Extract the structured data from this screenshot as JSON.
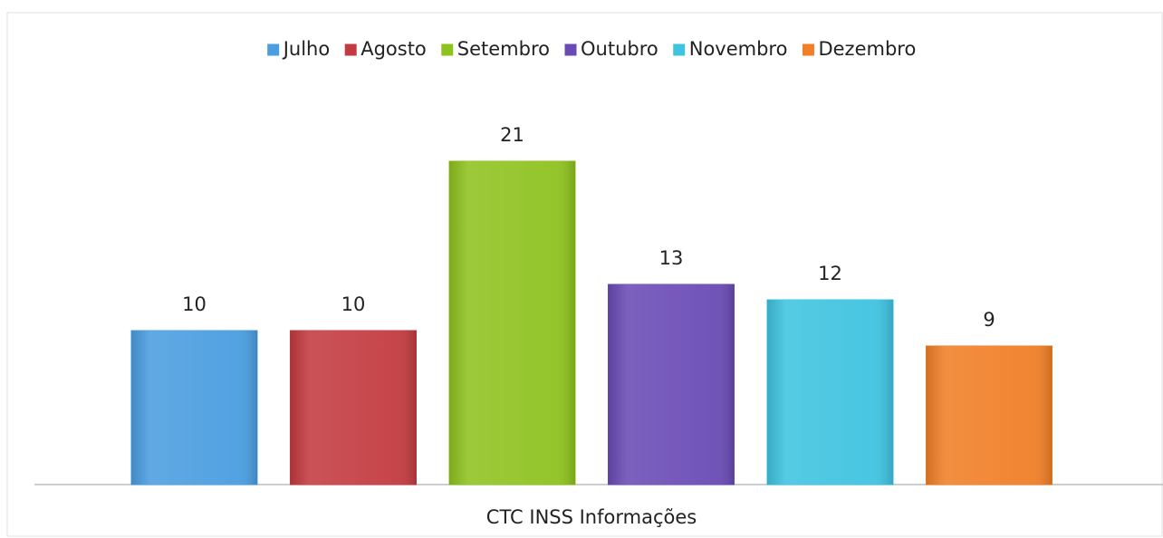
{
  "chart_data": {
    "type": "bar",
    "categories": [
      "CTC INSS Informações"
    ],
    "series": [
      {
        "name": "Julho",
        "color": "#4a9de0",
        "values": [
          10
        ]
      },
      {
        "name": "Agosto",
        "color": "#c33b40",
        "values": [
          10
        ]
      },
      {
        "name": "Setembro",
        "color": "#8ec21f",
        "values": [
          21
        ]
      },
      {
        "name": "Outubro",
        "color": "#6a4bb5",
        "values": [
          13
        ]
      },
      {
        "name": "Novembro",
        "color": "#3ec3e0",
        "values": [
          12
        ]
      },
      {
        "name": "Dezembro",
        "color": "#f07f27",
        "values": [
          9
        ]
      }
    ],
    "legend": "top"
  }
}
